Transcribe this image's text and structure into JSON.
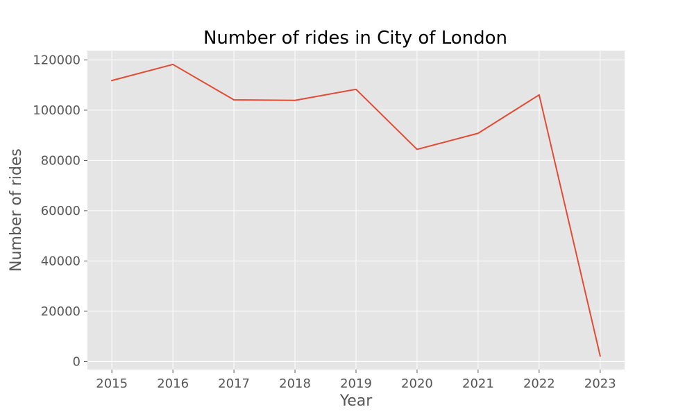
{
  "chart_data": {
    "type": "line",
    "title": "Number of rides in City of London",
    "xlabel": "Year",
    "ylabel": "Number of rides",
    "x": [
      2015,
      2016,
      2017,
      2018,
      2019,
      2020,
      2021,
      2022,
      2023
    ],
    "series": [
      {
        "values": [
          111800,
          118200,
          104100,
          103900,
          108300,
          84400,
          90800,
          106100,
          2200
        ]
      }
    ],
    "xlim": [
      2014.6,
      2023.4
    ],
    "ylim": [
      -3200,
      123700
    ],
    "xticks": [
      2015,
      2016,
      2017,
      2018,
      2019,
      2020,
      2021,
      2022,
      2023
    ],
    "yticks": [
      0,
      20000,
      40000,
      60000,
      80000,
      100000,
      120000
    ],
    "grid": true,
    "legend": "none",
    "colors": {
      "background": "#ffffff",
      "plot_area": "#e5e5e5",
      "grid": "#ffffff",
      "line": "#e24a33",
      "tick_text": "#555555",
      "title_text": "#000000"
    }
  }
}
